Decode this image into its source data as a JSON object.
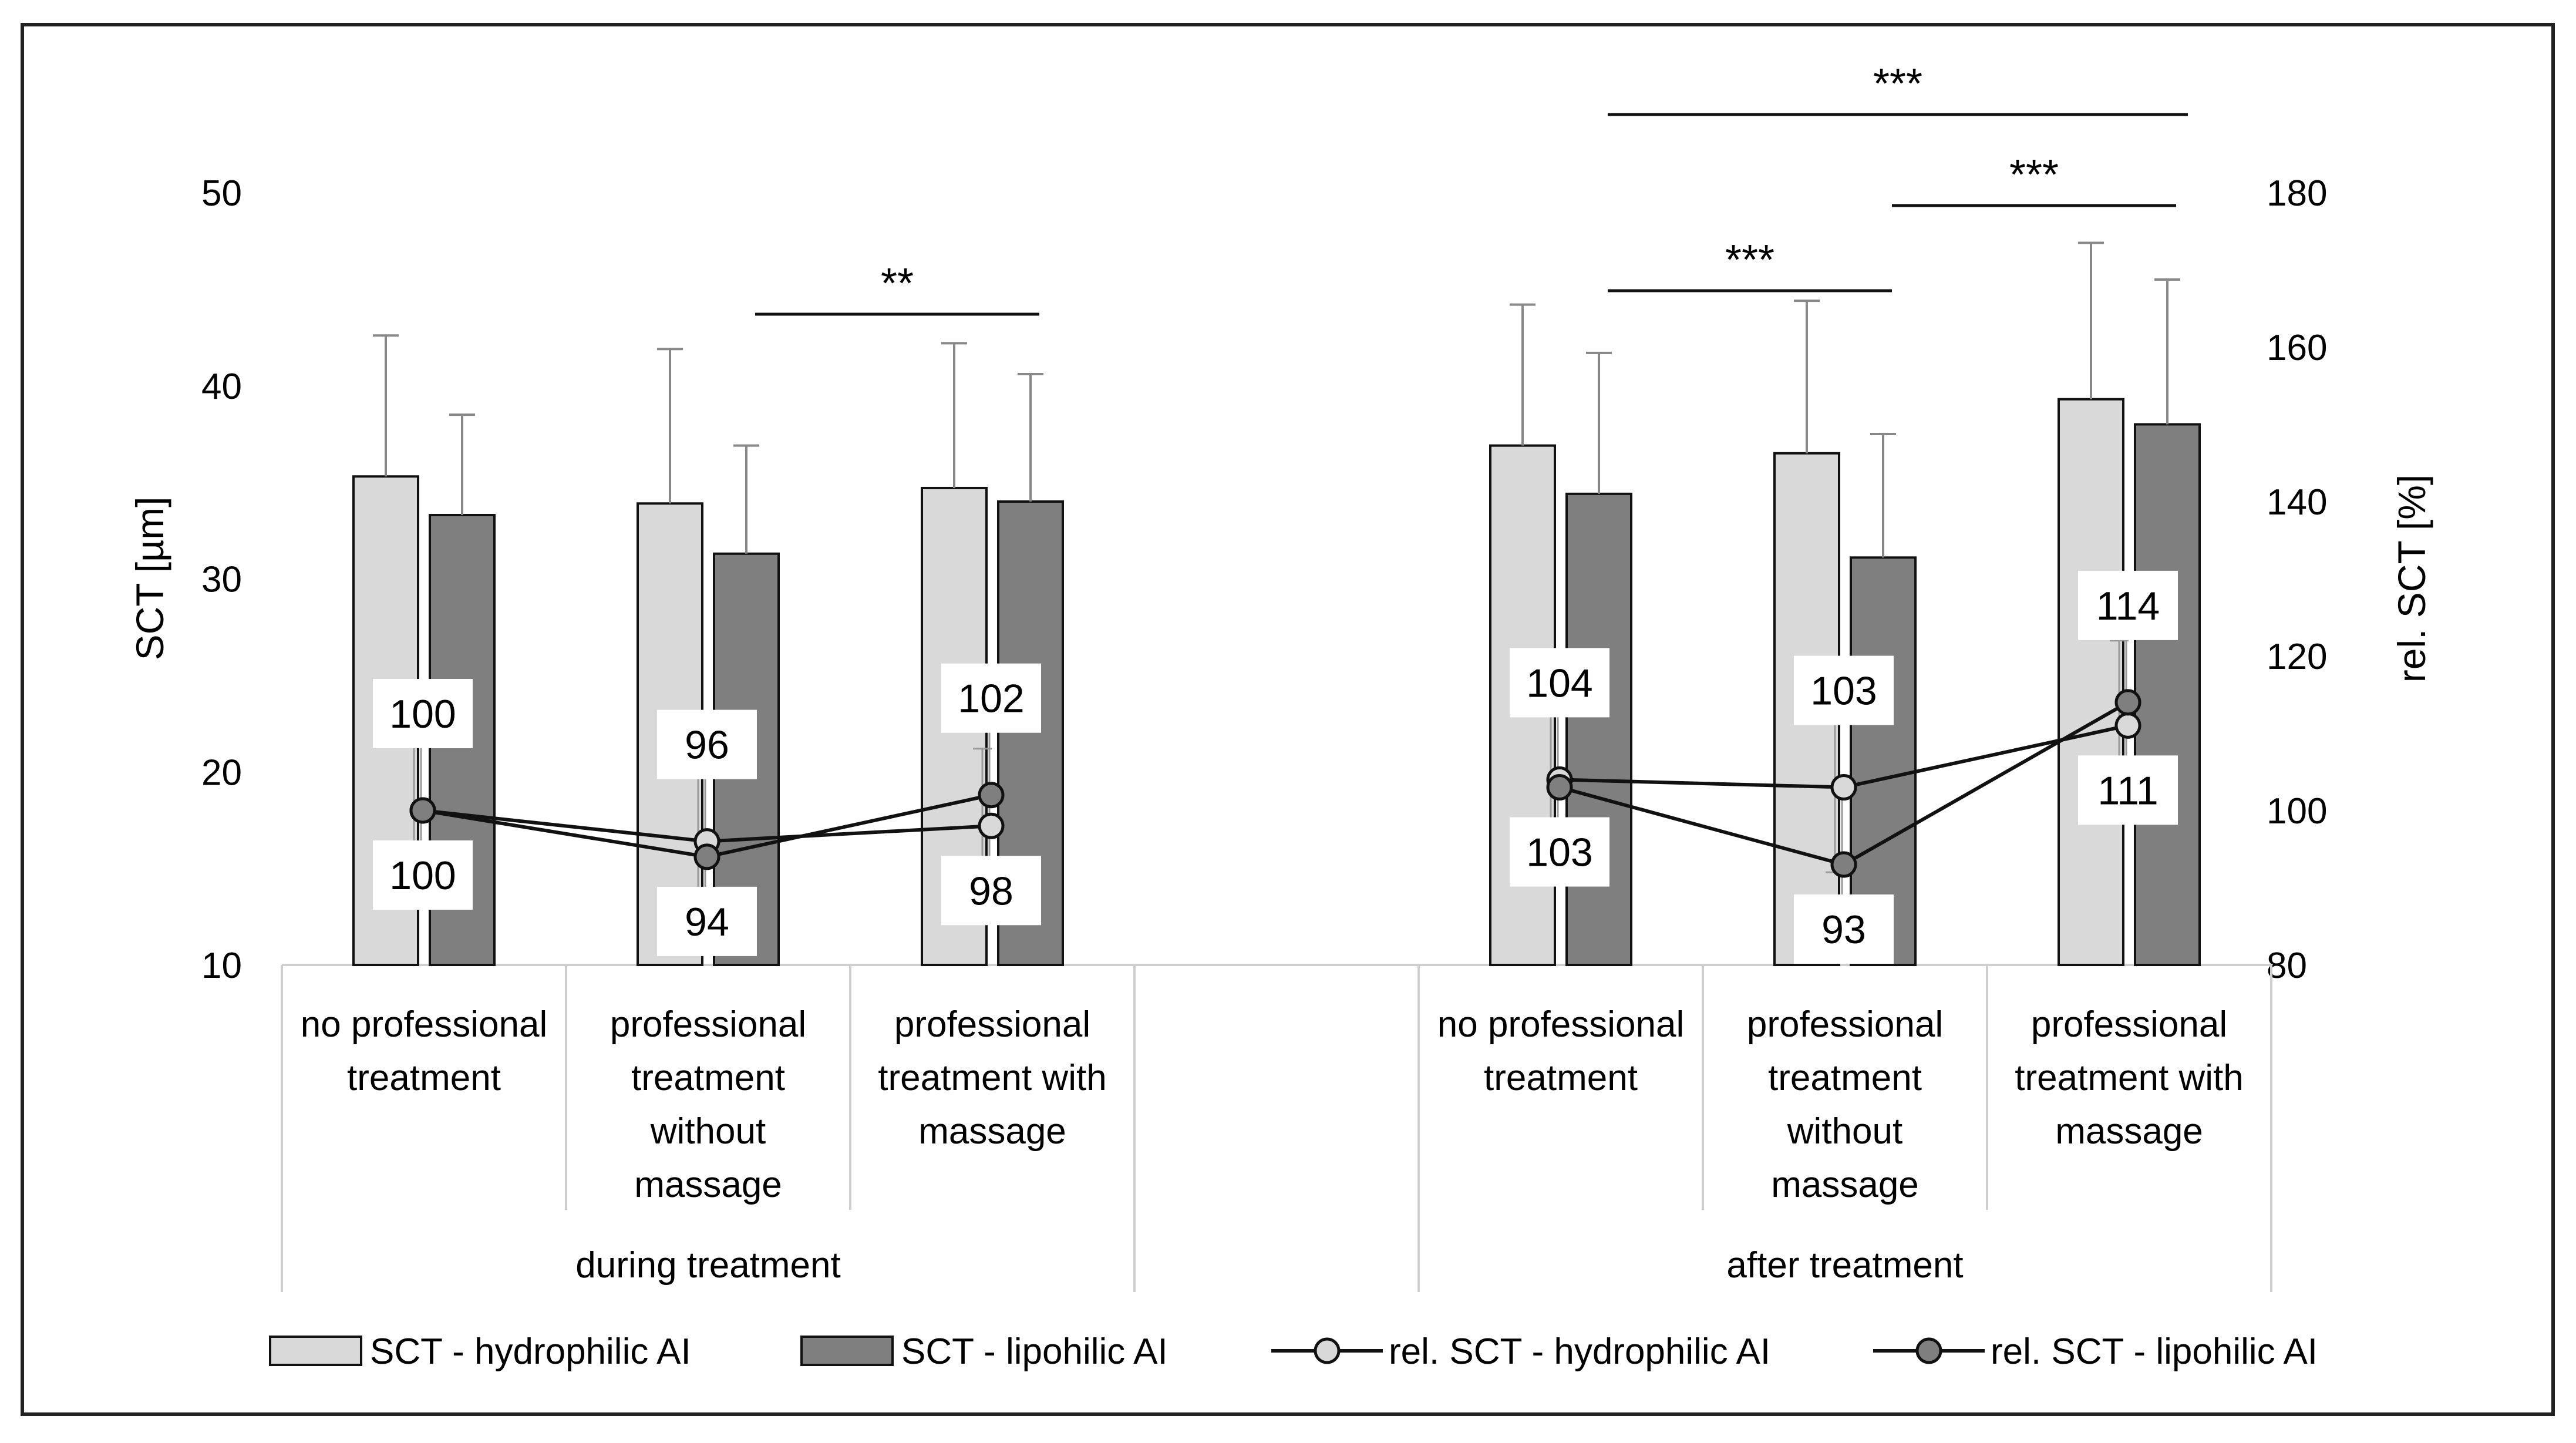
{
  "chart_data": {
    "type": "bar",
    "title": "",
    "y_left_label": "SCT [µm]",
    "y_right_label": "rel. SCT [%]",
    "y_left_ticks": [
      "10",
      "20",
      "30",
      "40",
      "50"
    ],
    "y_right_ticks": [
      "80",
      "100",
      "120",
      "140",
      "160",
      "180"
    ],
    "ylim_left": [
      10,
      50
    ],
    "ylim_right": [
      80,
      180
    ],
    "groups": [
      {
        "label": "during treatment",
        "categories": [
          [
            "no professional",
            "treatment"
          ],
          [
            "professional",
            "treatment",
            "without",
            "massage"
          ],
          [
            "professional",
            "treatment with",
            "massage"
          ]
        ]
      },
      {
        "label": "after treatment",
        "categories": [
          [
            "no professional",
            "treatment"
          ],
          [
            "professional",
            "treatment",
            "without",
            "massage"
          ],
          [
            "professional",
            "treatment with",
            "massage"
          ]
        ]
      }
    ],
    "bar_series": [
      {
        "name": "SCT - hydrophilic AI",
        "color": "#d9d9d9",
        "values": [
          35.3,
          33.9,
          34.7,
          36.9,
          36.5,
          39.3
        ],
        "errors": [
          7.3,
          8.0,
          7.5,
          7.3,
          7.9,
          8.1
        ]
      },
      {
        "name": "SCT - lipohilic AI",
        "color": "#7f7f7f",
        "values": [
          33.3,
          31.3,
          34.0,
          34.4,
          31.1,
          38.0
        ],
        "errors": [
          5.2,
          5.6,
          6.6,
          7.3,
          6.4,
          7.5
        ]
      }
    ],
    "line_series": [
      {
        "name": "rel. SCT - hydrophilic AI",
        "color": "#d9d9d9",
        "values": [
          100,
          96,
          98,
          104,
          103,
          111
        ],
        "errors": [
          10,
          10,
          10,
          11,
          11,
          11
        ],
        "labels": [
          "100",
          "96",
          "98",
          "104",
          "103",
          "111"
        ]
      },
      {
        "name": "rel. SCT - lipohilic AI",
        "color": "#7f7f7f",
        "values": [
          100,
          94,
          102,
          103,
          93,
          114
        ],
        "errors": [
          10,
          11,
          10,
          11,
          11,
          11
        ],
        "labels": [
          "100",
          "94",
          "102",
          "103",
          "93",
          "114"
        ]
      }
    ],
    "significance": [
      {
        "from": 1,
        "to": 2,
        "label": "**"
      },
      {
        "from": 3,
        "to": 4,
        "label": "***"
      },
      {
        "from": 4,
        "to": 5,
        "label": "***"
      },
      {
        "from": 3,
        "to": 5,
        "label": "***"
      }
    ],
    "legend_position": "bottom"
  }
}
